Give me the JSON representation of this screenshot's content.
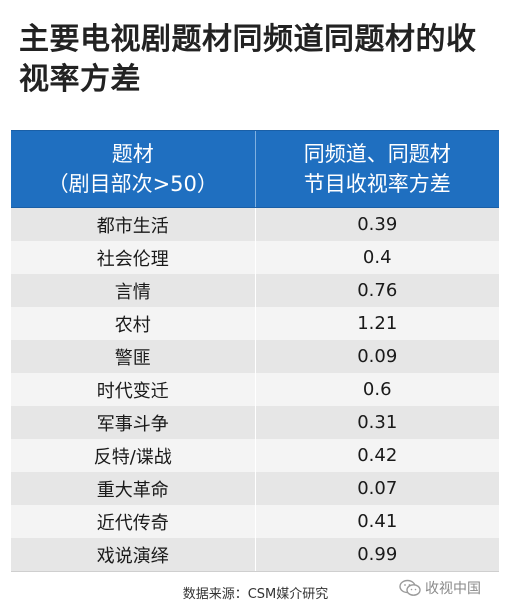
{
  "title": "主要电视剧题材同频道同题材的收视率方差",
  "table": {
    "header": {
      "col1_line1": "题材",
      "col1_line2": "（剧目部次>50）",
      "col2_line1": "同频道、同题材",
      "col2_line2": "节目收视率方差"
    },
    "rows": [
      {
        "genre": "都市生活",
        "variance": "0.39"
      },
      {
        "genre": "社会伦理",
        "variance": "0.4"
      },
      {
        "genre": "言情",
        "variance": "0.76"
      },
      {
        "genre": "农村",
        "variance": "1.21"
      },
      {
        "genre": "警匪",
        "variance": "0.09"
      },
      {
        "genre": "时代变迁",
        "variance": "0.6"
      },
      {
        "genre": "军事斗争",
        "variance": "0.31"
      },
      {
        "genre": "反特/谍战",
        "variance": "0.42"
      },
      {
        "genre": "重大革命",
        "variance": "0.07"
      },
      {
        "genre": "近代传奇",
        "variance": "0.41"
      },
      {
        "genre": "戏说演绎",
        "variance": "0.99"
      }
    ]
  },
  "source": "数据来源：CSM媒介研究",
  "watermark": {
    "text": "收视中国",
    "icon": "wechat-icon"
  }
}
